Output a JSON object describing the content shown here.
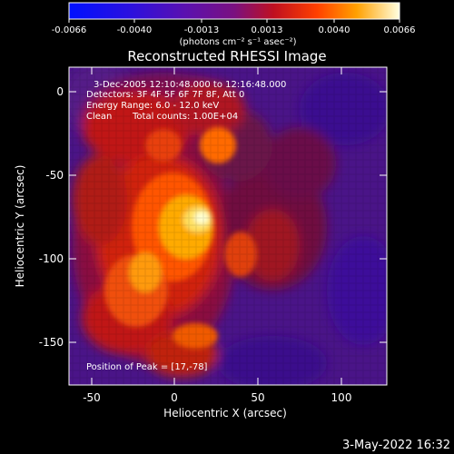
{
  "colorbar": {
    "tick_labels": [
      "-0.0066",
      "-0.0040",
      "-0.0013",
      "0.0013",
      "0.0040",
      "0.0066"
    ],
    "units": "(photons cm⁻² s⁻¹ asec⁻²)"
  },
  "title": "Reconstructed RHESSI Image",
  "info": {
    "time": "3-Dec-2005 12:10:48.000 to 12:16:48.000",
    "detectors": "Detectors: 3F 4F 5F 6F 7F 8F, Att 0",
    "energy": "Energy Range: 6.0 - 12.0 keV",
    "method": "Clean",
    "counts": "Total counts: 1.00E+04"
  },
  "peak_label": "Position of Peak = [17,-78]",
  "axes": {
    "xlabel": "Heliocentric X (arcsec)",
    "ylabel": "Heliocentric Y (arcsec)",
    "xticks": [
      "-50",
      "0",
      "50",
      "100"
    ],
    "yticks": [
      "0",
      "-50",
      "-100",
      "-150"
    ],
    "xlim": [
      -65,
      127
    ],
    "ylim": [
      -175,
      15
    ]
  },
  "timestamp": "3-May-2022 16:32",
  "colors": {
    "background": "#000000",
    "text": "#ffffff"
  },
  "chart_data": {
    "type": "heatmap",
    "peak_position": [
      17,
      -78
    ]
  }
}
